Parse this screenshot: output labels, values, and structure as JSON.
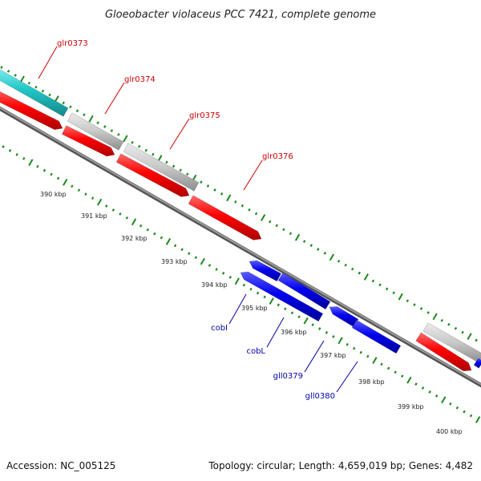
{
  "title": "Gloeobacter violaceus PCC 7421, complete genome",
  "footer": {
    "accession": "Accession: NC_005125",
    "summary": "Topology: circular; Length: 4,659,019 bp; Genes: 4,482"
  },
  "colors": {
    "forward_strand_gene": "#ff0000",
    "reverse_strand_gene": "#0000ee",
    "forward_label": "#cc0000",
    "reverse_label": "#0000aa",
    "rna_gene": "#22c8c8",
    "gene_track_gray": "#c8c8c8",
    "backbone": "#7a7a7a",
    "tick_marks": "#1a8a1a"
  },
  "ruler_labels": [
    "390 kbp",
    "391 kbp",
    "392 kbp",
    "393 kbp",
    "394 kbp",
    "395 kbp",
    "396 kbp",
    "397 kbp",
    "398 kbp",
    "399 kbp",
    "400 kbp"
  ],
  "forward_gene_labels": [
    "glr0373",
    "glr0374",
    "glr0375",
    "glr0376"
  ],
  "reverse_gene_labels": [
    "cobI",
    "cobL",
    "gll0379",
    "gll0380"
  ]
}
